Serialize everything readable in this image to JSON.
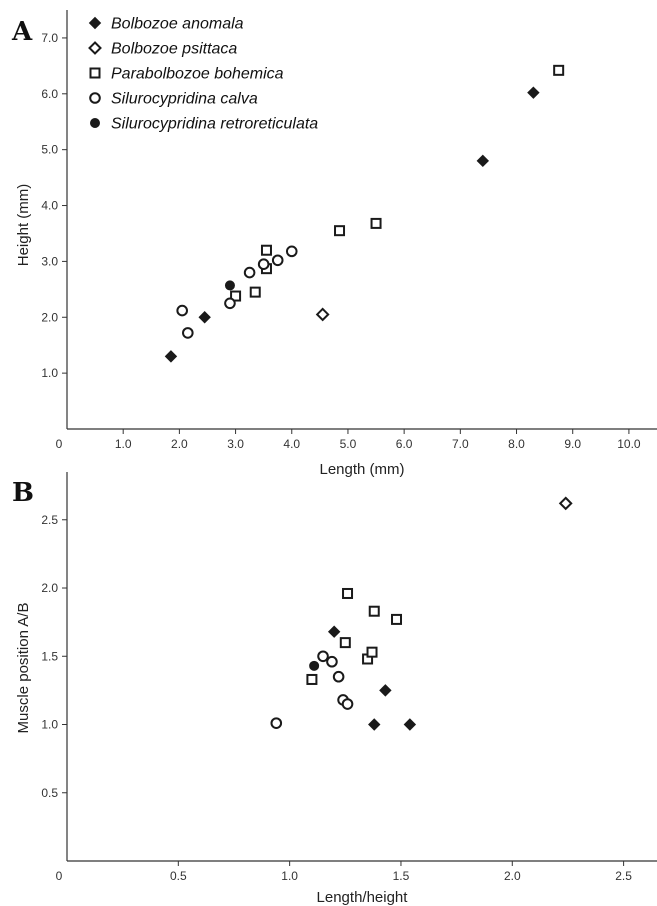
{
  "chart_data": [
    {
      "panel_label": "A",
      "type": "scatter",
      "xlabel": "Length (mm)",
      "ylabel": "Height (mm)",
      "xlim": [
        0,
        10.5
      ],
      "ylim": [
        0,
        7.5
      ],
      "xticks": [
        "0",
        "1.0",
        "2.0",
        "3.0",
        "4.0",
        "5.0",
        "6.0",
        "7.0",
        "8.0",
        "9.0",
        "10.0"
      ],
      "yticks": [
        "1.0",
        "2.0",
        "3.0",
        "4.0",
        "5.0",
        "6.0",
        "7.0"
      ],
      "legend_position": "top-left",
      "series": [
        {
          "name": "Bolbozoe anomala",
          "marker": "filled-diamond",
          "points": [
            [
              1.85,
              1.3
            ],
            [
              2.45,
              2.0
            ],
            [
              7.4,
              4.8
            ],
            [
              8.3,
              6.02
            ]
          ]
        },
        {
          "name": "Bolbozoe psittaca",
          "marker": "open-diamond",
          "points": [
            [
              4.55,
              2.05
            ]
          ]
        },
        {
          "name": "Parabolbozoe bohemica",
          "marker": "open-square",
          "points": [
            [
              3.0,
              2.38
            ],
            [
              3.35,
              2.45
            ],
            [
              3.55,
              2.87
            ],
            [
              3.55,
              3.2
            ],
            [
              4.85,
              3.55
            ],
            [
              5.5,
              3.68
            ],
            [
              8.75,
              6.42
            ]
          ]
        },
        {
          "name": "Silurocypridina calva",
          "marker": "open-circle",
          "points": [
            [
              2.05,
              2.12
            ],
            [
              2.15,
              1.72
            ],
            [
              2.9,
              2.25
            ],
            [
              3.25,
              2.8
            ],
            [
              3.5,
              2.95
            ],
            [
              3.75,
              3.02
            ],
            [
              4.0,
              3.18
            ]
          ]
        },
        {
          "name": "Silurocypridina retroreticulata",
          "marker": "filled-circle",
          "points": [
            [
              2.9,
              2.57
            ]
          ]
        }
      ]
    },
    {
      "panel_label": "B",
      "type": "scatter",
      "xlabel": "Length/height",
      "ylabel": "Muscle position A/B",
      "xlim": [
        0,
        2.65
      ],
      "ylim": [
        0,
        2.85
      ],
      "xticks": [
        "0",
        "0.5",
        "1.0",
        "1.5",
        "2.0",
        "2.5"
      ],
      "yticks": [
        "0.5",
        "1.0",
        "1.5",
        "2.0",
        "2.5"
      ],
      "series": [
        {
          "name": "Bolbozoe anomala",
          "marker": "filled-diamond",
          "points": [
            [
              1.2,
              1.68
            ],
            [
              1.38,
              1.0
            ],
            [
              1.43,
              1.25
            ],
            [
              1.54,
              1.0
            ]
          ]
        },
        {
          "name": "Bolbozoe psittaca",
          "marker": "open-diamond",
          "points": [
            [
              2.24,
              2.62
            ]
          ]
        },
        {
          "name": "Parabolbozoe bohemica",
          "marker": "open-square",
          "points": [
            [
              1.1,
              1.33
            ],
            [
              1.25,
              1.6
            ],
            [
              1.26,
              1.96
            ],
            [
              1.35,
              1.48
            ],
            [
              1.37,
              1.53
            ],
            [
              1.38,
              1.83
            ],
            [
              1.48,
              1.77
            ]
          ]
        },
        {
          "name": "Silurocypridina calva",
          "marker": "open-circle",
          "points": [
            [
              0.94,
              1.01
            ],
            [
              1.15,
              1.5
            ],
            [
              1.19,
              1.46
            ],
            [
              1.22,
              1.35
            ],
            [
              1.24,
              1.18
            ],
            [
              1.26,
              1.15
            ]
          ]
        },
        {
          "name": "Silurocypridina retroreticulata",
          "marker": "filled-circle",
          "points": [
            [
              1.11,
              1.43
            ]
          ]
        }
      ]
    }
  ]
}
